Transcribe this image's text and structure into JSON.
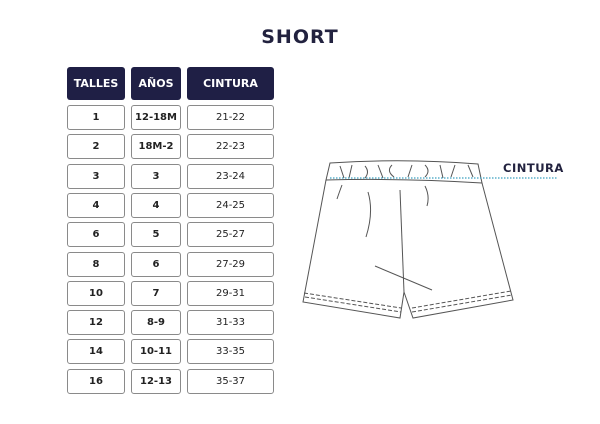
{
  "title": "SHORT",
  "table": {
    "headers": [
      "TALLES",
      "AÑOS",
      "CINTURA"
    ],
    "rows": [
      [
        "1",
        "12-18M",
        "21-22"
      ],
      [
        "2",
        "18M-2",
        "22-23"
      ],
      [
        "3",
        "3",
        "23-24"
      ],
      [
        "4",
        "4",
        "24-25"
      ],
      [
        "6",
        "5",
        "25-27"
      ],
      [
        "8",
        "6",
        "27-29"
      ],
      [
        "10",
        "7",
        "29-31"
      ],
      [
        "12",
        "8-9",
        "31-33"
      ],
      [
        "14",
        "10-11",
        "33-35"
      ],
      [
        "16",
        "12-13",
        "35-37"
      ]
    ]
  },
  "diagram": {
    "measure_label": "CINTURA",
    "header_color": "#1f1f45",
    "measure_line_color": "#3aa0c0"
  }
}
